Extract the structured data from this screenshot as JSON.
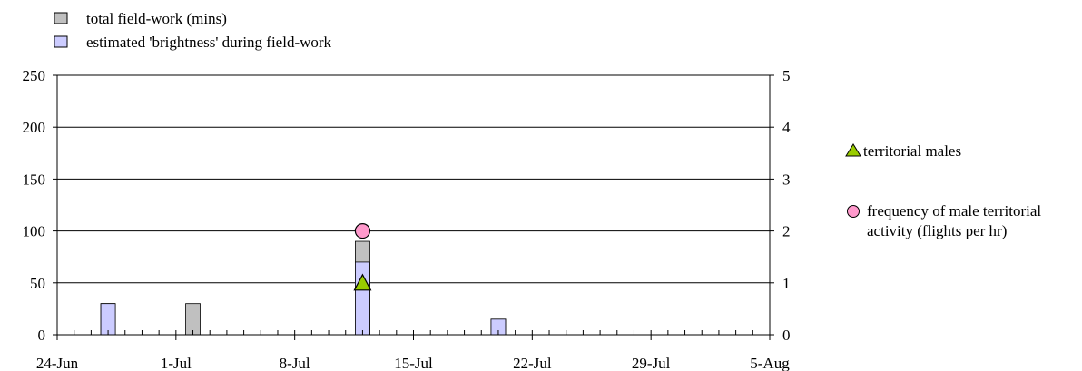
{
  "chart_data": {
    "type": "bar",
    "x_axis": {
      "type": "date",
      "range": [
        "2024-06-24",
        "2024-08-05"
      ],
      "tick_labels": [
        "24-Jun",
        "1-Jul",
        "8-Jul",
        "15-Jul",
        "22-Jul",
        "29-Jul",
        "5-Aug"
      ],
      "minor_ticks": "daily"
    },
    "y_axis_left": {
      "ylim": [
        0,
        250
      ],
      "ticks": [
        0,
        50,
        100,
        150,
        200,
        250
      ]
    },
    "y_axis_right": {
      "ylim": [
        0,
        5
      ],
      "ticks": [
        0,
        1,
        2,
        3,
        4,
        5
      ]
    },
    "grid": "horizontal major gridlines",
    "series": [
      {
        "name": "total field-work (mins)",
        "kind": "bar",
        "axis": "left",
        "color": "#c0c0c0",
        "points": [
          {
            "x": "2024-06-27",
            "y": 30
          },
          {
            "x": "2024-07-02",
            "y": 30
          },
          {
            "x": "2024-07-12",
            "y": 90
          },
          {
            "x": "2024-07-20",
            "y": 15
          }
        ]
      },
      {
        "name": "estimated 'brightness' during field-work",
        "kind": "bar",
        "axis": "left",
        "color": "#ccccff",
        "points": [
          {
            "x": "2024-06-27",
            "y": 30
          },
          {
            "x": "2024-07-02",
            "y": 0
          },
          {
            "x": "2024-07-12",
            "y": 70
          },
          {
            "x": "2024-07-20",
            "y": 15
          }
        ]
      },
      {
        "name": "territorial males",
        "kind": "marker",
        "marker": "triangle",
        "axis": "right",
        "color": "#99cc00",
        "points": [
          {
            "x": "2024-07-12",
            "y": 1
          }
        ]
      },
      {
        "name": "frequency of male territorial activity (flights per hr)",
        "kind": "marker",
        "marker": "circle",
        "axis": "right",
        "color": "#ff99cc",
        "points": [
          {
            "x": "2024-07-12",
            "y": 2
          }
        ]
      }
    ],
    "legend": {
      "top": [
        {
          "label": "total field-work (mins)",
          "color": "#c0c0c0"
        },
        {
          "label": "estimated 'brightness' during field-work",
          "color": "#ccccff"
        }
      ],
      "right": [
        {
          "label": "territorial males",
          "marker": "triangle",
          "color": "#99cc00"
        },
        {
          "label_lines": [
            "frequency of male territorial",
            "activity (flights per hr)"
          ],
          "marker": "circle",
          "color": "#ff99cc"
        }
      ]
    }
  }
}
